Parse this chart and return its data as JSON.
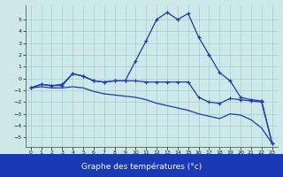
{
  "xlabel": "Graphe des températures (°c)",
  "x": [
    0,
    1,
    2,
    3,
    4,
    5,
    6,
    7,
    8,
    9,
    10,
    11,
    12,
    13,
    14,
    15,
    16,
    17,
    18,
    19,
    20,
    21,
    22,
    23
  ],
  "line1": [
    -0.8,
    -0.5,
    -0.6,
    -0.6,
    0.4,
    0.2,
    -0.2,
    -0.3,
    -0.2,
    -0.2,
    1.5,
    3.2,
    5.0,
    5.6,
    5.0,
    5.5,
    3.5,
    2.0,
    0.5,
    -0.2,
    -1.6,
    -1.8,
    -1.9,
    -5.5
  ],
  "line2": [
    -0.8,
    -0.5,
    -0.6,
    -0.5,
    0.4,
    0.2,
    -0.2,
    -0.3,
    -0.2,
    -0.2,
    -0.2,
    -0.3,
    -0.3,
    -0.3,
    -0.3,
    -0.3,
    -1.6,
    -2.0,
    -2.1,
    -1.7,
    -1.8,
    -1.9,
    -2.0,
    -5.5
  ],
  "line3": [
    -0.8,
    -0.7,
    -0.8,
    -0.8,
    -0.7,
    -0.8,
    -1.1,
    -1.3,
    -1.4,
    -1.5,
    -1.6,
    -1.8,
    -2.1,
    -2.3,
    -2.5,
    -2.7,
    -3.0,
    -3.2,
    -3.4,
    -3.0,
    -3.1,
    -3.5,
    -4.2,
    -5.5
  ],
  "ylim": [
    -5.8,
    6.2
  ],
  "xlim": [
    -0.5,
    23.5
  ],
  "yticks": [
    -5,
    -4,
    -3,
    -2,
    -1,
    0,
    1,
    2,
    3,
    4,
    5
  ],
  "xticks": [
    0,
    1,
    2,
    3,
    4,
    5,
    6,
    7,
    8,
    9,
    10,
    11,
    12,
    13,
    14,
    15,
    16,
    17,
    18,
    19,
    20,
    21,
    22,
    23
  ],
  "line_color": "#1a3ab5",
  "bg_color": "#cce8e8",
  "grid_color": "#9ec8c8",
  "xlabel_bar_color": "#1a3ab5",
  "xlabel_text_color": "#ffffff"
}
